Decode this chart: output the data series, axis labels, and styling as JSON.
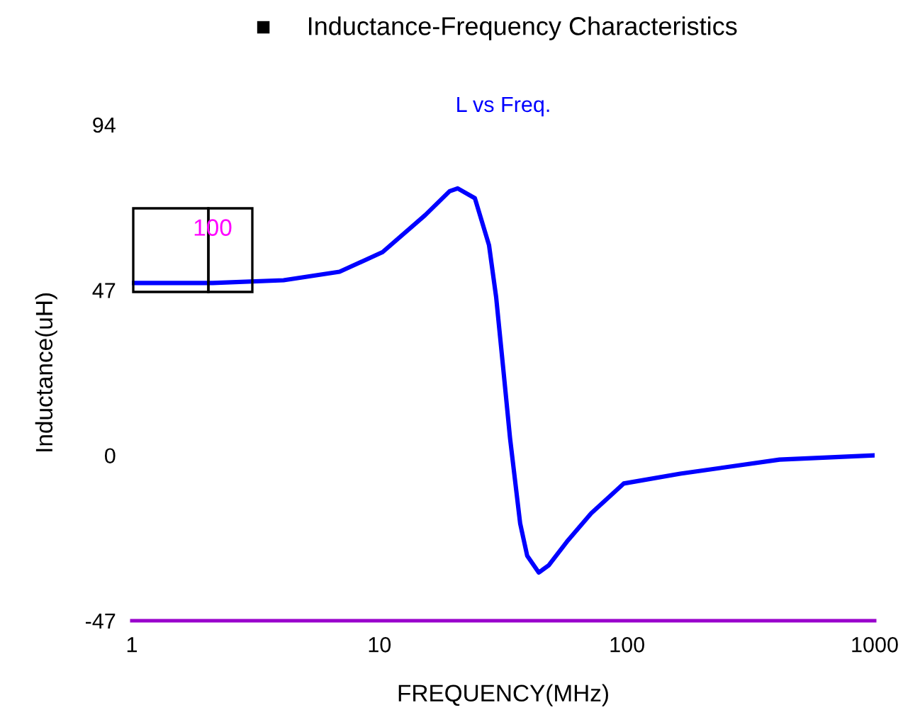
{
  "chart_data": {
    "type": "line",
    "title": "■     Inductance-Frequency Characteristics",
    "subtitle": "L vs Freq.",
    "xlabel": "FREQUENCY(MHz)",
    "ylabel": "Inductance(uH)",
    "annotations": [
      "100"
    ],
    "x": [
      1,
      2.12,
      4.1,
      6.9,
      10.3,
      15.3,
      19.2,
      20.7,
      24.3,
      27.7,
      29.6,
      31.6,
      33.7,
      37,
      39.5,
      44,
      48.2,
      57.2,
      71.6,
      96.9,
      164,
      413,
      1000
    ],
    "series": [
      {
        "color": "#0000ff",
        "values": [
          49.0,
          49.0,
          49.8,
          52.2,
          57.8,
          68.3,
          75.1,
          75.9,
          73.1,
          59.8,
          45.0,
          24.9,
          4.8,
          -19.3,
          -28.5,
          -33.3,
          -31.3,
          -24.5,
          -16.5,
          -8.0,
          -5.2,
          -1.2,
          0
        ]
      }
    ],
    "log": "x",
    "xlim": [
      1,
      1000
    ],
    "xticks": [
      1,
      10,
      100,
      1000
    ],
    "ylim": [
      -47,
      94
    ],
    "yticks": [
      -47,
      0,
      47,
      94
    ],
    "grid": false,
    "marker": "none",
    "line_style": "solid"
  }
}
